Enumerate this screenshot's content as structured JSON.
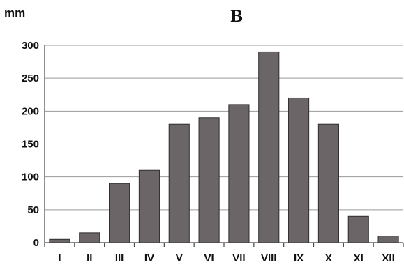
{
  "chart_data": {
    "type": "bar",
    "title": "B",
    "ylabel": "mm",
    "xlabel": "",
    "categories": [
      "I",
      "II",
      "III",
      "IV",
      "V",
      "VI",
      "VII",
      "VIII",
      "IX",
      "X",
      "XI",
      "XII"
    ],
    "values": [
      5,
      15,
      90,
      110,
      180,
      190,
      210,
      290,
      220,
      180,
      40,
      10
    ],
    "ylim": [
      0,
      300
    ],
    "yticks": [
      0,
      50,
      100,
      150,
      200,
      250,
      300
    ],
    "grid": true,
    "legend": "none",
    "bar_color": "#6b6567"
  }
}
